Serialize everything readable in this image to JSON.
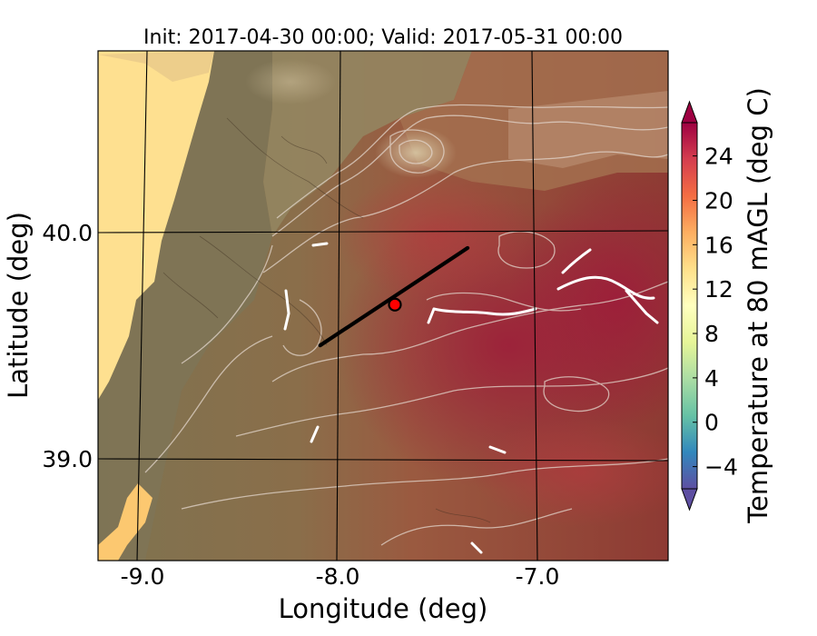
{
  "title": "Init: 2017-04-30 00:00; Valid: 2017-05-31 00:00",
  "x_axis": {
    "label": "Longitude (deg)",
    "ticks": [
      "-9.0",
      "-8.0",
      "-7.0"
    ]
  },
  "y_axis": {
    "label": "Latitude (deg)",
    "ticks": [
      "40.0",
      "39.0"
    ]
  },
  "colorbar": {
    "label": "Temperature at 80 mAGL (deg C)",
    "ticks": [
      "24",
      "20",
      "16",
      "12",
      "8",
      "4",
      "0",
      "−4"
    ],
    "tick_values": [
      24,
      20,
      16,
      12,
      8,
      4,
      0,
      -4
    ],
    "range": [
      -6,
      27
    ],
    "extend": "both",
    "colormap": "Spectral_r",
    "colors": [
      "#5e4fa2",
      "#3288bd",
      "#66c2a5",
      "#abdda4",
      "#e6f598",
      "#ffffbf",
      "#fee08b",
      "#fdae61",
      "#f46d43",
      "#d53e4f",
      "#9e0142"
    ]
  },
  "map": {
    "lon_range": [
      -9.25,
      -6.35
    ],
    "lat_range": [
      38.55,
      40.8
    ],
    "ocean_color": "#fee090",
    "transect": {
      "start": [
        -8.12,
        39.5
      ],
      "end": [
        -7.37,
        39.93
      ]
    },
    "marker": {
      "lon": -7.74,
      "lat": 39.68,
      "color": "#ff0000"
    }
  }
}
